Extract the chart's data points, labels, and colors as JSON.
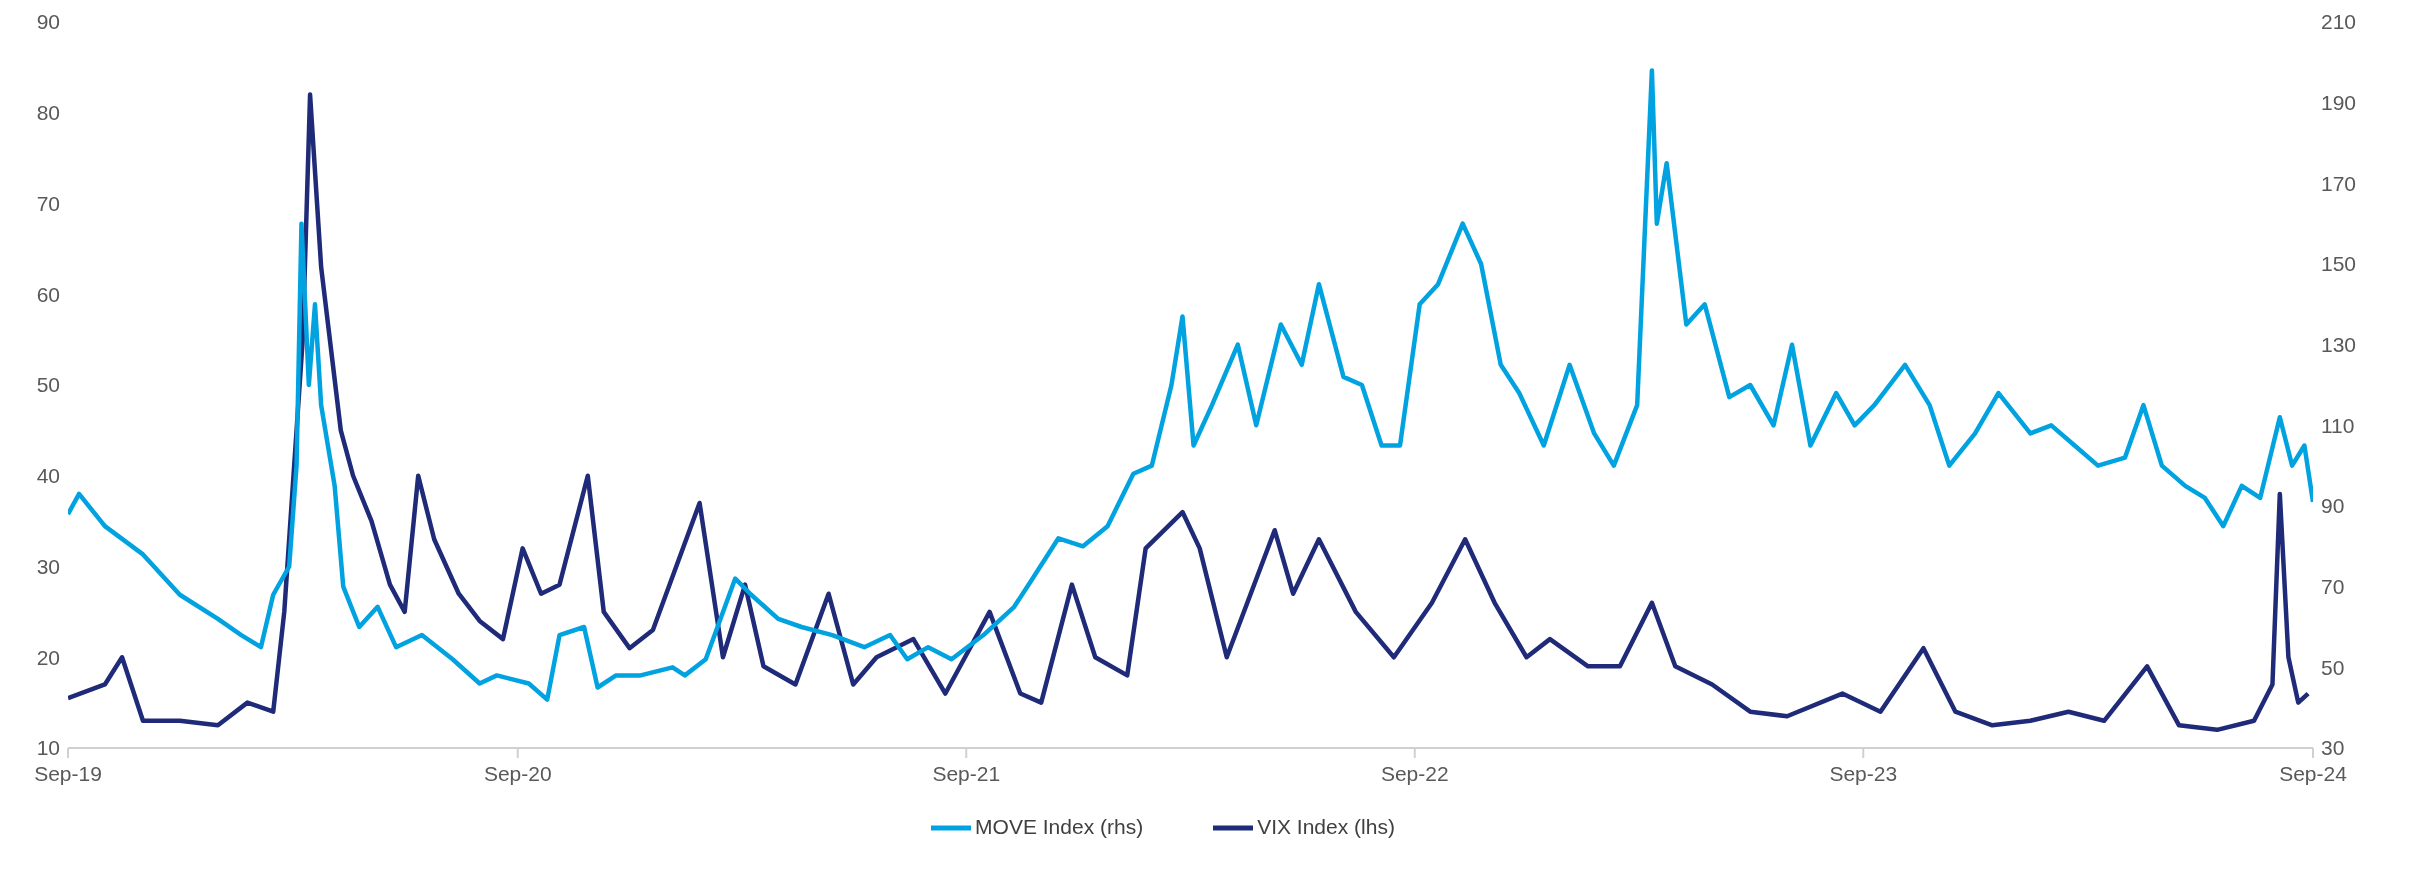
{
  "chart_data": {
    "type": "line",
    "legend": "bottom",
    "marker": "none",
    "line_style": "solid",
    "xlim": [
      "2019-09-01",
      "2024-09-01"
    ],
    "xticks": [
      {
        "value": "2019-09-01",
        "label": "Sep-19"
      },
      {
        "value": "2020-09-01",
        "label": "Sep-20"
      },
      {
        "value": "2021-09-01",
        "label": "Sep-21"
      },
      {
        "value": "2022-09-01",
        "label": "Sep-22"
      },
      {
        "value": "2023-09-01",
        "label": "Sep-23"
      },
      {
        "value": "2024-09-01",
        "label": "Sep-24"
      }
    ],
    "ylim": [
      10,
      90
    ],
    "yticks": [
      10,
      20,
      30,
      40,
      50,
      60,
      70,
      80,
      90
    ],
    "y2lim": [
      30,
      210
    ],
    "y2ticks": [
      30,
      50,
      70,
      90,
      110,
      130,
      150,
      170,
      190,
      210
    ],
    "series": [
      {
        "name": "VIX Index (lhs)",
        "color": "#1f2a78",
        "x": [
          "2019-09-01",
          "2019-10-01",
          "2019-10-15",
          "2019-11-01",
          "2019-12-01",
          "2020-01-01",
          "2020-01-25",
          "2020-02-15",
          "2020-02-24",
          "2020-03-10",
          "2020-03-16",
          "2020-03-25",
          "2020-04-10",
          "2020-04-20",
          "2020-05-05",
          "2020-05-20",
          "2020-06-01",
          "2020-06-12",
          "2020-06-25",
          "2020-07-15",
          "2020-08-01",
          "2020-08-20",
          "2020-09-05",
          "2020-09-20",
          "2020-10-05",
          "2020-10-28",
          "2020-11-10",
          "2020-12-01",
          "2020-12-20",
          "2021-01-27",
          "2021-02-15",
          "2021-03-05",
          "2021-03-20",
          "2021-04-15",
          "2021-05-12",
          "2021-06-01",
          "2021-06-20",
          "2021-07-20",
          "2021-08-15",
          "2021-09-20",
          "2021-10-15",
          "2021-11-01",
          "2021-11-26",
          "2021-12-15",
          "2022-01-10",
          "2022-01-25",
          "2022-02-24",
          "2022-03-10",
          "2022-04-01",
          "2022-05-10",
          "2022-05-25",
          "2022-06-15",
          "2022-07-15",
          "2022-08-15",
          "2022-09-15",
          "2022-10-12",
          "2022-11-05",
          "2022-12-01",
          "2022-12-20",
          "2023-01-20",
          "2023-02-15",
          "2023-03-13",
          "2023-04-01",
          "2023-05-01",
          "2023-06-01",
          "2023-07-01",
          "2023-08-15",
          "2023-09-15",
          "2023-10-20",
          "2023-11-15",
          "2023-12-15",
          "2024-01-15",
          "2024-02-15",
          "2024-03-15",
          "2024-04-19",
          "2024-05-15",
          "2024-06-15",
          "2024-07-15",
          "2024-07-30",
          "2024-08-05",
          "2024-08-12",
          "2024-08-20",
          "2024-08-28"
        ],
        "values": [
          15.5,
          17,
          20,
          13,
          13,
          12.5,
          15,
          14,
          25,
          55,
          82,
          63,
          45,
          40,
          35,
          28,
          25,
          40,
          33,
          27,
          24,
          22,
          32,
          27,
          28,
          40,
          25,
          21,
          23,
          37,
          20,
          28,
          19,
          17,
          27,
          17,
          20,
          22,
          16,
          25,
          16,
          15,
          28,
          20,
          18,
          32,
          36,
          32,
          20,
          34,
          27,
          33,
          25,
          20,
          26,
          33,
          26,
          20,
          22,
          19,
          19,
          26,
          19,
          17,
          14,
          13.5,
          16,
          14,
          21,
          14,
          12.5,
          13,
          14,
          13,
          19,
          12.5,
          12,
          13,
          17,
          38,
          20,
          15,
          16
        ]
      },
      {
        "name": "MOVE Index (rhs)",
        "color": "#00a3e0",
        "axis": "y2",
        "x": [
          "2019-09-01",
          "2019-09-10",
          "2019-10-01",
          "2019-11-01",
          "2019-12-01",
          "2020-01-01",
          "2020-01-20",
          "2020-02-05",
          "2020-02-15",
          "2020-02-28",
          "2020-03-05",
          "2020-03-09",
          "2020-03-15",
          "2020-03-20",
          "2020-03-25",
          "2020-04-05",
          "2020-04-12",
          "2020-04-25",
          "2020-05-10",
          "2020-05-25",
          "2020-06-15",
          "2020-07-10",
          "2020-08-01",
          "2020-08-15",
          "2020-09-10",
          "2020-09-25",
          "2020-10-05",
          "2020-10-25",
          "2020-11-05",
          "2020-11-20",
          "2020-12-10",
          "2021-01-05",
          "2021-01-15",
          "2021-02-01",
          "2021-02-25",
          "2021-03-10",
          "2021-04-01",
          "2021-04-20",
          "2021-05-15",
          "2021-06-10",
          "2021-07-01",
          "2021-07-15",
          "2021-08-01",
          "2021-08-20",
          "2021-09-15",
          "2021-10-10",
          "2021-10-25",
          "2021-11-15",
          "2021-12-05",
          "2021-12-25",
          "2022-01-15",
          "2022-01-30",
          "2022-02-15",
          "2022-02-24",
          "2022-03-05",
          "2022-03-20",
          "2022-04-10",
          "2022-04-25",
          "2022-05-15",
          "2022-06-01",
          "2022-06-15",
          "2022-07-05",
          "2022-07-20",
          "2022-08-05",
          "2022-08-20",
          "2022-09-05",
          "2022-09-20",
          "2022-10-10",
          "2022-10-25",
          "2022-11-10",
          "2022-11-25",
          "2022-12-15",
          "2023-01-05",
          "2023-01-25",
          "2023-02-10",
          "2023-03-01",
          "2023-03-13",
          "2023-03-17",
          "2023-03-25",
          "2023-04-10",
          "2023-04-25",
          "2023-05-15",
          "2023-06-01",
          "2023-06-20",
          "2023-07-05",
          "2023-07-20",
          "2023-08-10",
          "2023-08-25",
          "2023-09-10",
          "2023-10-05",
          "2023-10-25",
          "2023-11-10",
          "2023-12-01",
          "2023-12-20",
          "2024-01-15",
          "2024-02-01",
          "2024-02-20",
          "2024-03-10",
          "2024-04-01",
          "2024-04-16",
          "2024-05-01",
          "2024-05-20",
          "2024-06-05",
          "2024-06-20",
          "2024-07-05",
          "2024-07-20",
          "2024-08-05",
          "2024-08-15",
          "2024-08-25",
          "2024-09-01"
        ],
        "values": [
          88,
          93,
          85,
          78,
          68,
          62,
          58,
          55,
          68,
          75,
          100,
          160,
          120,
          140,
          115,
          95,
          70,
          60,
          65,
          55,
          58,
          52,
          46,
          48,
          46,
          42,
          58,
          60,
          45,
          48,
          48,
          50,
          48,
          52,
          72,
          68,
          62,
          60,
          58,
          55,
          58,
          52,
          55,
          52,
          58,
          65,
          72,
          82,
          80,
          85,
          98,
          100,
          120,
          137,
          105,
          115,
          130,
          110,
          135,
          125,
          145,
          122,
          120,
          105,
          105,
          140,
          145,
          160,
          150,
          125,
          118,
          105,
          125,
          108,
          100,
          115,
          198,
          160,
          175,
          135,
          140,
          117,
          120,
          110,
          130,
          105,
          118,
          110,
          115,
          125,
          115,
          100,
          108,
          118,
          108,
          110,
          105,
          100,
          102,
          115,
          100,
          95,
          92,
          85,
          95,
          92,
          112,
          100,
          105,
          91
        ]
      }
    ]
  }
}
